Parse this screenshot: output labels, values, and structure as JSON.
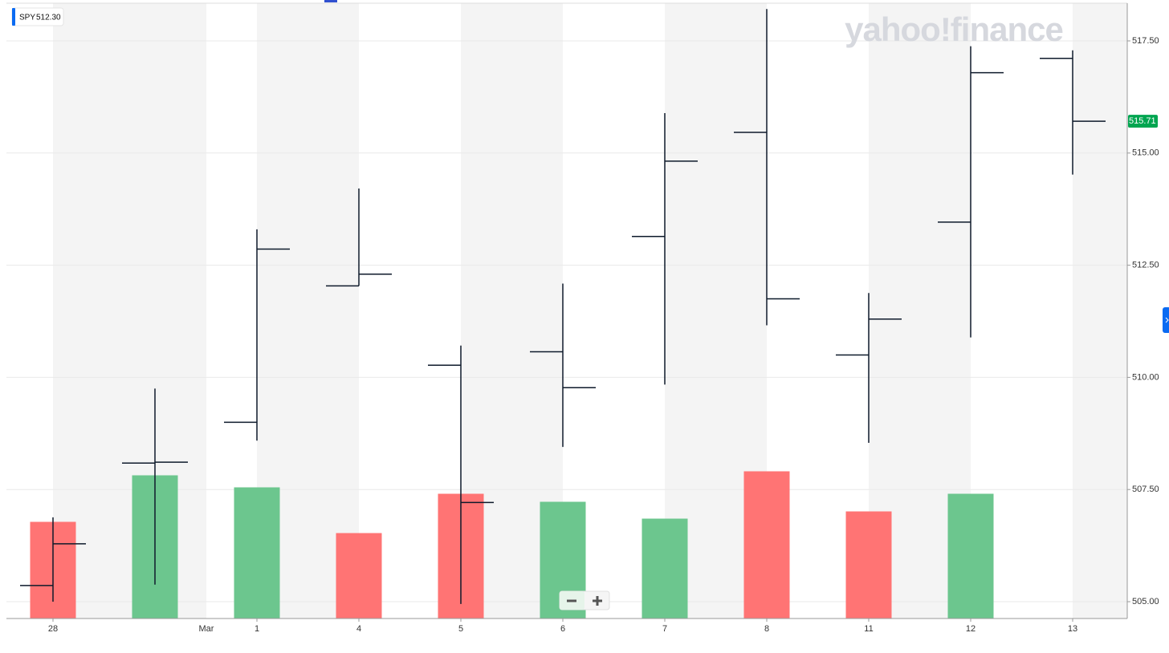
{
  "chart_data": {
    "type": "ohlc",
    "legend": {
      "symbol": "SPY",
      "price": "512.30"
    },
    "watermark": "yahoo!finance",
    "month_label": "Mar",
    "categories": [
      "28",
      null,
      "1",
      "4",
      "5",
      "6",
      "7",
      "8",
      "11",
      "12",
      "13"
    ],
    "open": [
      505.36,
      508.09,
      509.0,
      512.04,
      510.27,
      510.57,
      513.14,
      515.46,
      510.5,
      513.46,
      517.11
    ],
    "high": [
      506.88,
      509.75,
      513.3,
      514.21,
      510.71,
      512.09,
      515.89,
      518.21,
      511.88,
      517.38,
      517.29
    ],
    "low": [
      505.0,
      505.38,
      508.59,
      512.04,
      504.95,
      508.45,
      509.84,
      511.16,
      508.54,
      510.89,
      514.52
    ],
    "close": [
      506.29,
      508.11,
      512.86,
      512.3,
      507.21,
      509.77,
      514.82,
      511.75,
      511.3,
      516.79,
      515.71
    ],
    "ohlc_color": "#0e1a2b",
    "volume": {
      "values": [
        60,
        89,
        81.5,
        53,
        77.5,
        72.5,
        62,
        91.5,
        66.5,
        77.5,
        null
      ],
      "colors": [
        "#ff7474",
        "#6cc68e",
        "#6cc68e",
        "#ff7474",
        "#ff7474",
        "#6cc68e",
        "#6cc68e",
        "#ff7474",
        "#ff7474",
        "#6cc68e",
        "#6cc68e"
      ],
      "ylim": [
        0,
        383.5
      ]
    },
    "last_price_color": "#00a550",
    "ylim": [
      504.625,
      518.34
    ],
    "yticks": [
      {
        "value": 505,
        "label": "505.00"
      },
      {
        "value": 507.5,
        "label": "507.50"
      },
      {
        "value": 510,
        "label": "510.00"
      },
      {
        "value": 512.5,
        "label": "512.50"
      },
      {
        "value": 515,
        "label": "515.00"
      },
      {
        "value": 517.5,
        "label": "517.50"
      }
    ],
    "grid": true
  }
}
